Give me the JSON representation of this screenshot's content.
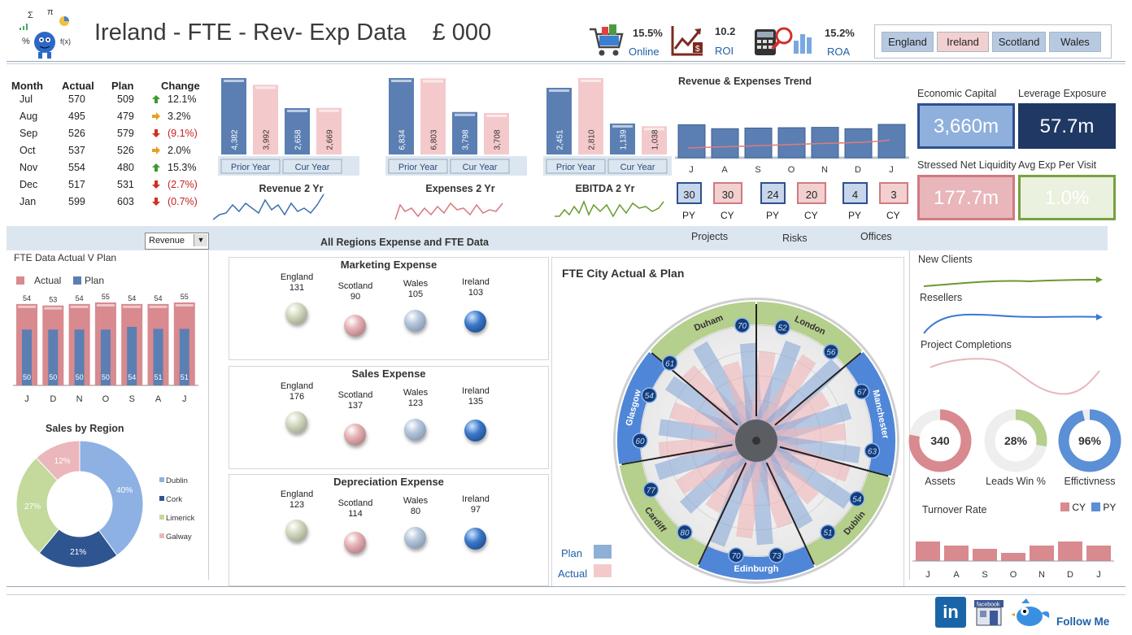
{
  "header": {
    "title": "Ireland - FTE - Rev- Exp Data",
    "currency": "£ 000",
    "kpis": [
      {
        "value": "15.5%",
        "label": "Online",
        "icon": "shopping-cart-icon"
      },
      {
        "value": "10.2",
        "label": "ROI",
        "icon": "roi-chart-icon"
      },
      {
        "value": "15.2%",
        "label": "ROA",
        "icon": "calculator-magnifier-icon"
      }
    ],
    "tabs": [
      "England",
      "Ireland",
      "Scotland",
      "Wales"
    ]
  },
  "monthly_table": {
    "headers": [
      "Month",
      "Actual",
      "Plan",
      "Change"
    ],
    "rows": [
      {
        "month": "Jul",
        "actual": "570",
        "plan": "509",
        "change": "12.1%",
        "dir": "up"
      },
      {
        "month": "Aug",
        "actual": "495",
        "plan": "479",
        "change": "3.2%",
        "dir": "right"
      },
      {
        "month": "Sep",
        "actual": "526",
        "plan": "579",
        "change": "(9.1%)",
        "dir": "down"
      },
      {
        "month": "Oct",
        "actual": "537",
        "plan": "526",
        "change": "2.0%",
        "dir": "right"
      },
      {
        "month": "Nov",
        "actual": "554",
        "plan": "480",
        "change": "15.3%",
        "dir": "up"
      },
      {
        "month": "Dec",
        "actual": "517",
        "plan": "531",
        "change": "(2.7%)",
        "dir": "down"
      },
      {
        "month": "Jan",
        "actual": "599",
        "plan": "603",
        "change": "(0.7%)",
        "dir": "down"
      }
    ]
  },
  "colors": {
    "blue": "#5b7fb3",
    "pink": "#f4c9cb",
    "red": "#d88a8f",
    "green": "#b5cf8c",
    "navy": "#1f3864"
  },
  "yoy_charts": [
    {
      "prior": 4382,
      "current": 3992,
      "prior_label": "4,382",
      "current_label": "3,992",
      "title": "Revenue 2 Yr"
    },
    {
      "prior": 2658,
      "current": 2669,
      "prior_label": "2,658",
      "current_label": "2,669",
      "title": ""
    },
    {
      "prior": 6834,
      "current": 6803,
      "prior_label": "6,834",
      "current_label": "6,803",
      "title": "Expenses 2 Yr"
    },
    {
      "prior": 3798,
      "current": 3708,
      "prior_label": "3,798",
      "current_label": "3,708",
      "title": ""
    },
    {
      "prior": 2451,
      "current": 2810,
      "prior_label": "2,451",
      "current_label": "2,810",
      "title": "EBITDA  2 Yr"
    },
    {
      "prior": 1139,
      "current": 1038,
      "prior_label": "1,139",
      "current_label": "1,038",
      "title": ""
    }
  ],
  "yoy_legend": {
    "prior": "Prior Year",
    "current": "Cur Year"
  },
  "sparklines": {
    "revenue": "Revenue 2 Yr",
    "expenses": "Expenses 2 Yr",
    "ebitda": "EBITDA  2 Yr"
  },
  "trend": {
    "title": "Revenue & Expenses Trend",
    "months": [
      "J",
      "A",
      "S",
      "O",
      "N",
      "D",
      "J"
    ],
    "values": [
      100,
      88,
      90,
      91,
      92,
      88,
      101
    ]
  },
  "pycy": [
    {
      "py": "30",
      "cy": "30",
      "label": "Projects"
    },
    {
      "py": "24",
      "cy": "20",
      "label": "Risks"
    },
    {
      "py": "4",
      "cy": "3",
      "label": "Offices"
    }
  ],
  "pycy_labels": {
    "py": "PY",
    "cy": "CY"
  },
  "metrics": [
    {
      "label": "Economic Capital",
      "value": "3,660m"
    },
    {
      "label": "Leverage Exposure",
      "value": "57.7m"
    },
    {
      "label": "Stressed Net Liquidity",
      "value": "177.7m"
    },
    {
      "label": "Avg Exp Per Visit",
      "value": "1.0%"
    }
  ],
  "dropdown": {
    "value": "Revenue"
  },
  "band_title": "All Regions Expense and FTE Data",
  "fte_chart": {
    "title": "FTE Data Actual V Plan",
    "legend": [
      "Actual",
      "Plan"
    ],
    "months": [
      "J",
      "D",
      "N",
      "O",
      "S",
      "A",
      "J"
    ],
    "actual": [
      54,
      53,
      54,
      55,
      54,
      54,
      55
    ],
    "plan": [
      50,
      50,
      50,
      50,
      54,
      51,
      51
    ],
    "actual_labels": [
      "54",
      "53",
      "54",
      "55",
      "54",
      "54",
      "55"
    ],
    "plan_labels": [
      "50",
      "50",
      "50",
      "50",
      "54",
      "51",
      "51"
    ]
  },
  "sales_region": {
    "title": "Sales by Region",
    "slices": [
      {
        "name": "Dublin",
        "value": 40,
        "label": "40%",
        "color": "#8eb1e3"
      },
      {
        "name": "Cork",
        "value": 21,
        "label": "21%",
        "color": "#2e5590"
      },
      {
        "name": "Limerick",
        "value": 27,
        "label": "27%",
        "color": "#c4d99c"
      },
      {
        "name": "Galway",
        "value": 12,
        "label": "12%",
        "color": "#ebb7bc"
      }
    ]
  },
  "expense_panels": [
    {
      "title": "Marketing Expense",
      "items": [
        {
          "region": "England",
          "value": "131"
        },
        {
          "region": "Scotland",
          "value": "90"
        },
        {
          "region": "Wales",
          "value": "105"
        },
        {
          "region": "Ireland",
          "value": "103"
        }
      ]
    },
    {
      "title": "Sales Expense",
      "items": [
        {
          "region": "England",
          "value": "176"
        },
        {
          "region": "Scotland",
          "value": "137"
        },
        {
          "region": "Wales",
          "value": "123"
        },
        {
          "region": "Ireland",
          "value": "135"
        }
      ]
    },
    {
      "title": "Depreciation Expense",
      "items": [
        {
          "region": "England",
          "value": "123"
        },
        {
          "region": "Scotland",
          "value": "114"
        },
        {
          "region": "Wales",
          "value": "80"
        },
        {
          "region": "Ireland",
          "value": "97"
        }
      ]
    }
  ],
  "radial": {
    "title": "FTE City Actual  & Plan",
    "cities": [
      "Duham",
      "London",
      "Manchester",
      "Dublin",
      "Edinburgh",
      "Cardiff",
      "Glasgow"
    ],
    "badges": [
      "70",
      "52",
      "56",
      "67",
      "63",
      "54",
      "51",
      "73",
      "70",
      "80",
      "77",
      "60",
      "54",
      "61"
    ],
    "legend_plan": "Plan",
    "legend_actual": "Actual"
  },
  "right_sparks": [
    "New Clients",
    "Resellers",
    "Project Completions"
  ],
  "donuts": [
    {
      "value": "340",
      "label": "Assets",
      "fraction": 0.78,
      "color": "#d88a8f"
    },
    {
      "value": "28%",
      "label": "Leads Win %",
      "fraction": 0.28,
      "color": "#b5cf8c"
    },
    {
      "value": "96%",
      "label": "Effictivness",
      "fraction": 0.96,
      "color": "#5b8fd6"
    }
  ],
  "turnover": {
    "title": "Turnover Rate",
    "legend": [
      "CY",
      "PY"
    ],
    "months": [
      "J",
      "A",
      "S",
      "O",
      "N",
      "D",
      "J"
    ],
    "values": [
      24,
      19,
      15,
      10,
      19,
      24,
      19
    ]
  },
  "footer": {
    "follow": "Follow Me",
    "icons": [
      "linkedin-icon",
      "facebook-icon",
      "twitter-bird-icon"
    ]
  }
}
